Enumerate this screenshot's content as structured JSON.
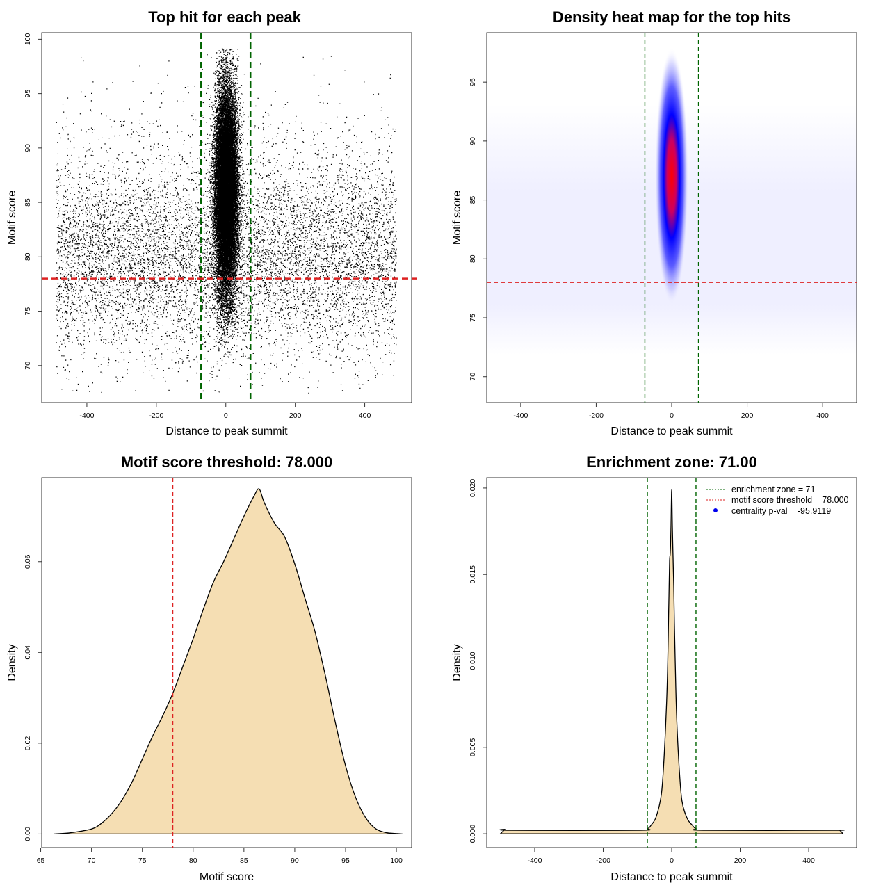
{
  "chart_data": [
    {
      "type": "scatter",
      "title": "Top hit for each peak",
      "xlabel": "Distance to peak summit",
      "ylabel": "Motif score",
      "xlim": [
        -530,
        535
      ],
      "ylim": [
        66.6,
        100.6
      ],
      "xticks": [
        -400,
        -200,
        0,
        200,
        400
      ],
      "yticks": [
        70,
        75,
        80,
        85,
        90,
        95,
        100
      ],
      "vlines": [
        -71,
        71
      ],
      "hline": 78,
      "colors": {
        "points": "#000000",
        "vlines": "#006400",
        "hline": "#dd2222"
      }
    },
    {
      "type": "heatmap",
      "title": "Density heat map for the top hits",
      "xlabel": "Distance to peak summit",
      "ylabel": "Motif score",
      "xlim": [
        -490,
        490
      ],
      "ylim": [
        67.8,
        99.2
      ],
      "xticks": [
        -400,
        -200,
        0,
        200,
        400
      ],
      "yticks": [
        70,
        75,
        80,
        85,
        90,
        95
      ],
      "vlines": [
        -71,
        71
      ],
      "hline": 78,
      "colors": {
        "low": "#ffffff",
        "mid": "#0000ff",
        "high": "#ff0000",
        "vlines": "#006400",
        "hline": "#dd2222"
      }
    },
    {
      "type": "area",
      "title": "Motif score threshold: 78.000",
      "xlabel": "Motif score",
      "ylabel": "Density",
      "xlim": [
        65.1,
        101.5
      ],
      "ylim": [
        -0.003,
        0.0785
      ],
      "xticks": [
        65,
        70,
        75,
        80,
        85,
        90,
        95,
        100
      ],
      "ytick_labels": [
        "0.00",
        "0.02",
        "0.04",
        "0.06"
      ],
      "yticks": [
        0,
        0.02,
        0.04,
        0.06
      ],
      "vline": 78,
      "x": [
        66.3,
        68,
        70,
        71,
        72,
        73,
        74,
        75,
        76,
        77,
        78,
        79,
        80,
        81,
        82,
        83,
        84,
        85,
        86,
        86.5,
        87,
        88,
        89,
        90,
        91,
        92,
        93,
        94,
        95,
        96,
        97,
        98,
        99,
        100,
        100.6
      ],
      "y": [
        0.0,
        0.0003,
        0.0011,
        0.0024,
        0.0045,
        0.0075,
        0.0115,
        0.0165,
        0.0215,
        0.026,
        0.031,
        0.037,
        0.043,
        0.0495,
        0.0555,
        0.06,
        0.065,
        0.07,
        0.0745,
        0.076,
        0.073,
        0.0685,
        0.0655,
        0.0595,
        0.052,
        0.0445,
        0.035,
        0.0245,
        0.015,
        0.008,
        0.0035,
        0.0011,
        0.0003,
        0.0001,
        0.0
      ],
      "colors": {
        "fill": "#f5deb3",
        "line": "#000000",
        "vline": "#dd2222"
      }
    },
    {
      "type": "area",
      "title": "Enrichment zone: 71.00",
      "xlabel": "Distance to peak summit",
      "ylabel": "Density",
      "xlim": [
        -540,
        540
      ],
      "ylim": [
        -0.0008,
        0.0206
      ],
      "xticks": [
        -400,
        -200,
        0,
        200,
        400
      ],
      "ytick_labels": [
        "0.000",
        "0.005",
        "0.010",
        "0.015",
        "0.020"
      ],
      "yticks": [
        0,
        0.005,
        0.01,
        0.015,
        0.02
      ],
      "vlines": [
        -71,
        71
      ],
      "x": [
        -500,
        -485,
        -470,
        -100,
        -71,
        -60,
        -45,
        -30,
        -22,
        -15,
        -12,
        -10,
        -8,
        -6,
        -4,
        -2,
        0,
        2,
        4,
        6,
        8,
        10,
        12,
        15,
        22,
        30,
        45,
        60,
        71,
        100,
        470,
        490,
        500
      ],
      "y": [
        0.0,
        0.00025,
        0.0002,
        0.0002,
        0.0003,
        0.0005,
        0.001,
        0.0023,
        0.0045,
        0.0075,
        0.0095,
        0.0115,
        0.0138,
        0.0158,
        0.0163,
        0.0178,
        0.0199,
        0.0178,
        0.016,
        0.0143,
        0.0122,
        0.0103,
        0.0085,
        0.0065,
        0.0038,
        0.0019,
        0.0009,
        0.0005,
        0.0003,
        0.0002,
        0.0002,
        0.0002,
        0.0
      ],
      "legend": [
        "enrichment zone = 71",
        "motif score threshold = 78.000",
        "centrality p-val = -95.9119"
      ],
      "legend_position": "top-right",
      "colors": {
        "fill": "#f5deb3",
        "line": "#000000",
        "vlines": "#006400",
        "legend_green": "#006400",
        "legend_red": "#dd2222",
        "legend_blue": "#0000ee"
      }
    }
  ]
}
